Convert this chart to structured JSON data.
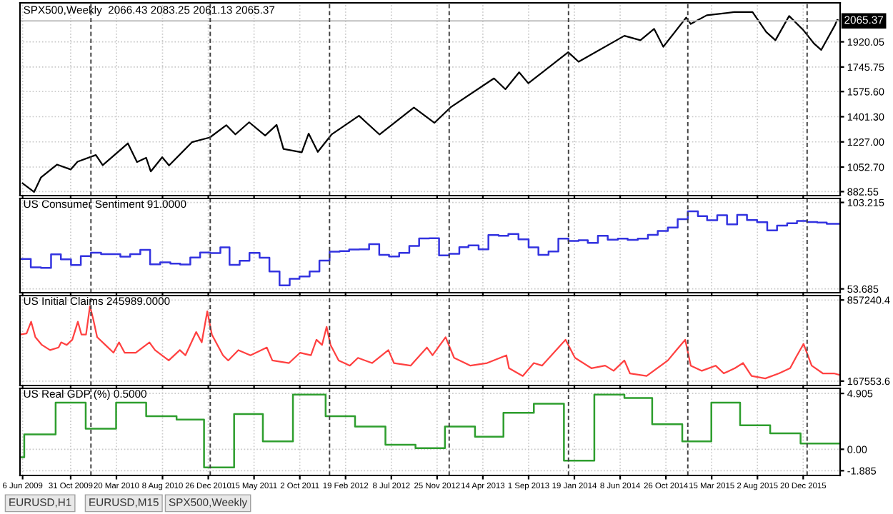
{
  "chart_data": [
    {
      "type": "line",
      "title": "SPX500,Weekly  2066.43 2083.25 2061.13 2065.37",
      "tick_labels": "y",
      "grid": true,
      "xlim": [
        "2009-05-29",
        "2016-04-11"
      ],
      "xticks": [
        {
          "value": "2009-06-06",
          "label": null
        },
        {
          "value": "2009-10-31",
          "label": null
        },
        {
          "value": "2010-03-20",
          "label": null
        },
        {
          "value": "2010-08-08",
          "label": null
        },
        {
          "value": "2010-12-26",
          "label": null
        },
        {
          "value": "2011-05-15",
          "label": null
        },
        {
          "value": "2011-10-02",
          "label": null
        },
        {
          "value": "2012-02-19",
          "label": null
        },
        {
          "value": "2012-07-08",
          "label": null
        },
        {
          "value": "2012-11-25",
          "label": null
        },
        {
          "value": "2013-04-14",
          "label": null
        },
        {
          "value": "2013-09-01",
          "label": null
        },
        {
          "value": "2014-01-19",
          "label": null
        },
        {
          "value": "2014-06-08",
          "label": null
        },
        {
          "value": "2014-10-26",
          "label": null
        },
        {
          "value": "2015-03-15",
          "label": null
        },
        {
          "value": "2015-08-02",
          "label": null
        },
        {
          "value": "2015-12-20",
          "label": null
        }
      ],
      "ylim": [
        855,
        2190
      ],
      "yticks": [
        {
          "value": 882.55,
          "label": "882.55"
        },
        {
          "value": 1052.7,
          "label": "1052.70"
        },
        {
          "value": 1227.0,
          "label": "1227.00"
        },
        {
          "value": 1401.3,
          "label": "1401.30"
        },
        {
          "value": 1575.6,
          "label": "1575.60"
        },
        {
          "value": 1745.75,
          "label": "1745.75"
        },
        {
          "value": 1920.05,
          "label": "1920.05"
        }
      ],
      "ref_lines": [
        {
          "axis": "y",
          "value": 2065.37,
          "label": "2065.37",
          "color": "#c0c0c0",
          "line_style": "solid"
        },
        {
          "axis": "x",
          "value": "2010-01-01",
          "color": "#404040",
          "line_style": "dashed"
        },
        {
          "axis": "x",
          "value": "2011-01-01",
          "color": "#404040",
          "line_style": "dashed"
        },
        {
          "axis": "x",
          "value": "2012-01-01",
          "color": "#404040",
          "line_style": "dashed"
        },
        {
          "axis": "x",
          "value": "2013-01-01",
          "color": "#404040",
          "line_style": "dashed"
        },
        {
          "axis": "x",
          "value": "2014-01-01",
          "color": "#404040",
          "line_style": "dashed"
        },
        {
          "axis": "x",
          "value": "2015-01-01",
          "color": "#404040",
          "line_style": "dashed"
        },
        {
          "axis": "x",
          "value": "2016-01-01",
          "color": "#404040",
          "line_style": "dashed"
        }
      ],
      "series": [
        {
          "color": "#000000",
          "x": [
            "2009-06-06",
            "2009-07-11",
            "2009-08-01",
            "2009-09-19",
            "2009-10-31",
            "2009-11-21",
            "2010-01-16",
            "2010-02-06",
            "2010-04-24",
            "2010-05-22",
            "2010-06-19",
            "2010-07-03",
            "2010-08-07",
            "2010-08-28",
            "2010-11-06",
            "2010-12-31",
            "2011-02-19",
            "2011-03-19",
            "2011-04-30",
            "2011-06-18",
            "2011-07-23",
            "2011-08-13",
            "2011-10-08",
            "2011-10-29",
            "2011-11-26",
            "2012-01-07",
            "2012-03-31",
            "2012-06-02",
            "2012-09-15",
            "2012-11-17",
            "2013-01-05",
            "2013-05-18",
            "2013-06-22",
            "2013-08-03",
            "2013-08-31",
            "2013-12-31",
            "2014-02-01",
            "2014-06-21",
            "2014-08-09",
            "2014-09-20",
            "2014-10-18",
            "2014-12-27",
            "2015-01-10",
            "2015-02-28",
            "2015-05-23",
            "2015-07-18",
            "2015-08-29",
            "2015-09-26",
            "2015-11-07",
            "2015-12-19",
            "2016-01-23",
            "2016-02-13",
            "2016-03-26",
            "2016-04-02",
            "2016-04-09"
          ],
          "values": [
            940,
            880,
            980,
            1070,
            1036,
            1090,
            1136,
            1066,
            1217,
            1087,
            1117,
            1022,
            1121,
            1064,
            1225,
            1258,
            1343,
            1279,
            1363,
            1271,
            1345,
            1178,
            1155,
            1285,
            1158,
            1278,
            1408,
            1278,
            1465,
            1359,
            1466,
            1667,
            1592,
            1709,
            1633,
            1848,
            1782,
            1962,
            1931,
            2010,
            1886,
            2088,
            2044,
            2104,
            2126,
            2126,
            1988,
            1931,
            2099,
            2005,
            1906,
            1864,
            2035,
            2072,
            2065
          ]
        }
      ]
    },
    {
      "type": "step",
      "title": "US Consumer Sentiment 91.0000",
      "tick_labels": "y",
      "grid": true,
      "xlim": [
        "2009-05-29",
        "2016-04-11"
      ],
      "xticks": [
        {
          "value": "2009-06-06",
          "label": null
        },
        {
          "value": "2009-10-31",
          "label": null
        },
        {
          "value": "2010-03-20",
          "label": null
        },
        {
          "value": "2010-08-08",
          "label": null
        },
        {
          "value": "2010-12-26",
          "label": null
        },
        {
          "value": "2011-05-15",
          "label": null
        },
        {
          "value": "2011-10-02",
          "label": null
        },
        {
          "value": "2012-02-19",
          "label": null
        },
        {
          "value": "2012-07-08",
          "label": null
        },
        {
          "value": "2012-11-25",
          "label": null
        },
        {
          "value": "2013-04-14",
          "label": null
        },
        {
          "value": "2013-09-01",
          "label": null
        },
        {
          "value": "2014-01-19",
          "label": null
        },
        {
          "value": "2014-06-08",
          "label": null
        },
        {
          "value": "2014-10-26",
          "label": null
        },
        {
          "value": "2015-03-15",
          "label": null
        },
        {
          "value": "2015-08-02",
          "label": null
        },
        {
          "value": "2015-12-20",
          "label": null
        }
      ],
      "ylim": [
        51.5,
        105.5
      ],
      "yticks": [
        53.685,
        103.215
      ],
      "ref_lines": [
        {
          "axis": "x",
          "value": "2010-01-01",
          "color": "#404040",
          "line_style": "dashed"
        },
        {
          "axis": "x",
          "value": "2011-01-01",
          "color": "#404040",
          "line_style": "dashed"
        },
        {
          "axis": "x",
          "value": "2012-01-01",
          "color": "#404040",
          "line_style": "dashed"
        },
        {
          "axis": "x",
          "value": "2013-01-01",
          "color": "#404040",
          "line_style": "dashed"
        },
        {
          "axis": "x",
          "value": "2014-01-01",
          "color": "#404040",
          "line_style": "dashed"
        },
        {
          "axis": "x",
          "value": "2015-01-01",
          "color": "#404040",
          "line_style": "dashed"
        },
        {
          "axis": "x",
          "value": "2016-01-01",
          "color": "#404040",
          "line_style": "dashed"
        }
      ],
      "series": [
        {
          "color": "#3333e0",
          "x": [
            "2009-06-01",
            "2009-07-01",
            "2009-08-01",
            "2009-09-01",
            "2009-10-01",
            "2009-11-01",
            "2009-12-01",
            "2010-01-01",
            "2010-02-01",
            "2010-03-01",
            "2010-04-01",
            "2010-05-01",
            "2010-06-01",
            "2010-07-01",
            "2010-08-01",
            "2010-09-01",
            "2010-10-01",
            "2010-11-01",
            "2010-12-01",
            "2011-01-01",
            "2011-02-01",
            "2011-03-01",
            "2011-04-01",
            "2011-05-01",
            "2011-06-01",
            "2011-07-01",
            "2011-08-01",
            "2011-09-01",
            "2011-10-01",
            "2011-11-01",
            "2011-12-01",
            "2012-01-01",
            "2012-02-01",
            "2012-03-01",
            "2012-04-01",
            "2012-05-01",
            "2012-06-01",
            "2012-07-01",
            "2012-08-01",
            "2012-09-01",
            "2012-10-01",
            "2012-11-01",
            "2012-12-01",
            "2013-01-01",
            "2013-02-01",
            "2013-03-01",
            "2013-04-01",
            "2013-05-01",
            "2013-06-01",
            "2013-07-01",
            "2013-08-01",
            "2013-09-01",
            "2013-10-01",
            "2013-11-01",
            "2013-12-01",
            "2014-01-01",
            "2014-02-01",
            "2014-03-01",
            "2014-04-01",
            "2014-05-01",
            "2014-06-01",
            "2014-07-01",
            "2014-08-01",
            "2014-09-01",
            "2014-10-01",
            "2014-11-01",
            "2014-12-01",
            "2015-01-01",
            "2015-02-01",
            "2015-03-01",
            "2015-04-01",
            "2015-05-01",
            "2015-06-01",
            "2015-07-01",
            "2015-08-01",
            "2015-09-01",
            "2015-10-01",
            "2015-11-01",
            "2015-12-01",
            "2016-01-01",
            "2016-02-01",
            "2016-03-01",
            "2016-04-09"
          ],
          "values": [
            70.8,
            66.0,
            65.7,
            73.5,
            70.6,
            67.4,
            72.5,
            74.4,
            73.6,
            73.6,
            72.2,
            73.6,
            76.0,
            67.8,
            68.9,
            68.2,
            67.7,
            71.6,
            74.5,
            74.2,
            77.5,
            67.5,
            69.8,
            74.3,
            71.5,
            63.7,
            55.7,
            59.5,
            60.8,
            63.7,
            69.9,
            75.0,
            75.3,
            76.2,
            76.4,
            79.3,
            73.2,
            72.3,
            74.3,
            78.3,
            82.6,
            82.7,
            72.9,
            73.8,
            77.6,
            78.6,
            76.4,
            84.5,
            84.1,
            85.1,
            82.1,
            77.5,
            73.2,
            75.1,
            82.5,
            81.2,
            81.6,
            80.0,
            84.1,
            81.9,
            82.5,
            81.8,
            82.5,
            84.6,
            86.9,
            88.8,
            93.6,
            98.1,
            95.4,
            93.0,
            95.9,
            90.7,
            96.1,
            93.1,
            91.9,
            87.2,
            90.0,
            91.3,
            92.6,
            92.0,
            91.7,
            91.0,
            91.0
          ]
        }
      ]
    },
    {
      "type": "line",
      "title": "US Initial Claims 245989.0000",
      "tick_labels": "y",
      "grid": true,
      "xlim": [
        "2009-05-29",
        "2016-04-11"
      ],
      "xticks": [
        {
          "value": "2009-06-06",
          "label": null
        },
        {
          "value": "2009-10-31",
          "label": null
        },
        {
          "value": "2010-03-20",
          "label": null
        },
        {
          "value": "2010-08-08",
          "label": null
        },
        {
          "value": "2010-12-26",
          "label": null
        },
        {
          "value": "2011-05-15",
          "label": null
        },
        {
          "value": "2011-10-02",
          "label": null
        },
        {
          "value": "2012-02-19",
          "label": null
        },
        {
          "value": "2012-07-08",
          "label": null
        },
        {
          "value": "2012-11-25",
          "label": null
        },
        {
          "value": "2013-04-14",
          "label": null
        },
        {
          "value": "2013-09-01",
          "label": null
        },
        {
          "value": "2014-01-19",
          "label": null
        },
        {
          "value": "2014-06-08",
          "label": null
        },
        {
          "value": "2014-10-26",
          "label": null
        },
        {
          "value": "2015-03-15",
          "label": null
        },
        {
          "value": "2015-08-02",
          "label": null
        },
        {
          "value": "2015-12-20",
          "label": null
        }
      ],
      "ylim": [
        130000,
        895000
      ],
      "yticks": [
        {
          "value": 167553.6,
          "label": "167553.6"
        },
        {
          "value": 857240.4,
          "label": "857240.4"
        }
      ],
      "ref_lines": [
        {
          "axis": "x",
          "value": "2010-01-01",
          "color": "#404040",
          "line_style": "dashed"
        },
        {
          "axis": "x",
          "value": "2011-01-01",
          "color": "#404040",
          "line_style": "dashed"
        },
        {
          "axis": "x",
          "value": "2012-01-01",
          "color": "#404040",
          "line_style": "dashed"
        },
        {
          "axis": "x",
          "value": "2013-01-01",
          "color": "#404040",
          "line_style": "dashed"
        },
        {
          "axis": "x",
          "value": "2014-01-01",
          "color": "#404040",
          "line_style": "dashed"
        },
        {
          "axis": "x",
          "value": "2015-01-01",
          "color": "#404040",
          "line_style": "dashed"
        },
        {
          "axis": "x",
          "value": "2016-01-01",
          "color": "#404040",
          "line_style": "dashed"
        }
      ],
      "series": [
        {
          "color": "#ff4040",
          "x": [
            "2009-05-29",
            "2009-06-18",
            "2009-07-02",
            "2009-07-15",
            "2009-08-04",
            "2009-08-29",
            "2009-09-24",
            "2009-10-02",
            "2009-10-19",
            "2009-11-05",
            "2009-11-22",
            "2009-12-03",
            "2009-12-17",
            "2009-12-29",
            "2010-01-08",
            "2010-01-20",
            "2010-02-14",
            "2010-03-11",
            "2010-03-28",
            "2010-04-14",
            "2010-05-18",
            "2010-06-29",
            "2010-07-16",
            "2010-08-27",
            "2010-09-30",
            "2010-10-17",
            "2010-11-19",
            "2010-12-06",
            "2010-12-23",
            "2011-01-06",
            "2011-02-09",
            "2011-02-25",
            "2011-03-28",
            "2011-05-04",
            "2011-06-23",
            "2011-07-10",
            "2011-08-30",
            "2011-10-03",
            "2011-11-05",
            "2011-11-22",
            "2011-12-09",
            "2011-12-23",
            "2012-01-04",
            "2012-01-29",
            "2012-03-03",
            "2012-03-28",
            "2012-05-10",
            "2012-06-29",
            "2012-07-16",
            "2012-09-05",
            "2012-10-25",
            "2012-11-11",
            "2012-12-21",
            "2013-01-16",
            "2013-03-07",
            "2013-04-27",
            "2013-06-25",
            "2013-07-03",
            "2013-08-14",
            "2013-09-17",
            "2013-10-12",
            "2013-11-24",
            "2013-12-23",
            "2014-01-21",
            "2014-03-12",
            "2014-04-23",
            "2014-05-19",
            "2014-06-21",
            "2014-07-08",
            "2014-08-28",
            "2014-11-01",
            "2014-11-27",
            "2014-12-24",
            "2015-01-10",
            "2015-02-13",
            "2015-03-27",
            "2015-04-21",
            "2015-05-25",
            "2015-06-19",
            "2015-07-15",
            "2015-08-26",
            "2015-10-07",
            "2015-11-10",
            "2015-11-27",
            "2015-12-21",
            "2016-01-15",
            "2016-02-18",
            "2016-03-23",
            "2016-04-09"
          ],
          "values": [
            563000,
            572000,
            673000,
            541000,
            475000,
            431000,
            453000,
            497000,
            475000,
            519000,
            673000,
            563000,
            563000,
            805000,
            695000,
            541000,
            475000,
            409000,
            497000,
            409000,
            409000,
            497000,
            431000,
            343000,
            431000,
            387000,
            585000,
            497000,
            761000,
            563000,
            387000,
            343000,
            431000,
            387000,
            453000,
            343000,
            321000,
            409000,
            387000,
            519000,
            475000,
            629000,
            475000,
            343000,
            299000,
            365000,
            321000,
            431000,
            321000,
            299000,
            453000,
            387000,
            541000,
            365000,
            299000,
            321000,
            387000,
            277000,
            211000,
            321000,
            299000,
            431000,
            519000,
            365000,
            277000,
            299000,
            255000,
            343000,
            233000,
            211000,
            343000,
            431000,
            519000,
            299000,
            255000,
            299000,
            233000,
            277000,
            321000,
            211000,
            190000,
            233000,
            277000,
            365000,
            484000,
            299000,
            233000,
            233000,
            220000
          ]
        }
      ]
    },
    {
      "type": "step",
      "title": "US Real GDP (%) 0.5000",
      "grid": true,
      "xlim": [
        "2009-05-29",
        "2016-04-11"
      ],
      "xticks": [
        {
          "value": "2009-06-06",
          "label": "6 Jun 2009"
        },
        {
          "value": "2009-10-31",
          "label": "31 Oct 2009"
        },
        {
          "value": "2010-03-20",
          "label": "20 Mar 2010"
        },
        {
          "value": "2010-08-08",
          "label": "8 Aug 2010"
        },
        {
          "value": "2010-12-26",
          "label": "26 Dec 2010"
        },
        {
          "value": "2011-05-15",
          "label": "15 May 2011"
        },
        {
          "value": "2011-10-02",
          "label": "2 Oct 2011"
        },
        {
          "value": "2012-02-19",
          "label": "19 Feb 2012"
        },
        {
          "value": "2012-07-08",
          "label": "8 Jul 2012"
        },
        {
          "value": "2012-11-25",
          "label": "25 Nov 2012"
        },
        {
          "value": "2013-04-14",
          "label": "14 Apr 2013"
        },
        {
          "value": "2013-09-01",
          "label": "1 Sep 2013"
        },
        {
          "value": "2014-01-19",
          "label": "19 Jan 2014"
        },
        {
          "value": "2014-06-08",
          "label": "8 Jun 2014"
        },
        {
          "value": "2014-10-26",
          "label": "26 Oct 2014"
        },
        {
          "value": "2015-03-15",
          "label": "15 Mar 2015"
        },
        {
          "value": "2015-08-02",
          "label": "2 Aug 2015"
        },
        {
          "value": "2015-12-20",
          "label": "20 Dec 2015"
        }
      ],
      "ylim": [
        -2.3,
        5.35
      ],
      "yticks": [
        {
          "value": -1.885,
          "label": "-1.885"
        },
        {
          "value": 0,
          "label": "0.00"
        },
        {
          "value": 4.905,
          "label": "4.905"
        }
      ],
      "ref_lines": [
        {
          "axis": "x",
          "value": "2010-01-01",
          "color": "#404040",
          "line_style": "dashed"
        },
        {
          "axis": "x",
          "value": "2011-01-01",
          "color": "#404040",
          "line_style": "dashed"
        },
        {
          "axis": "x",
          "value": "2012-01-01",
          "color": "#404040",
          "line_style": "dashed"
        },
        {
          "axis": "x",
          "value": "2013-01-01",
          "color": "#404040",
          "line_style": "dashed"
        },
        {
          "axis": "x",
          "value": "2014-01-01",
          "color": "#404040",
          "line_style": "dashed"
        },
        {
          "axis": "x",
          "value": "2015-01-01",
          "color": "#404040",
          "line_style": "dashed"
        },
        {
          "axis": "x",
          "value": "2016-01-01",
          "color": "#404040",
          "line_style": "dashed"
        }
      ],
      "annotations": [
        "EURUSD,H1",
        "EURUSD,M15",
        "SPX500,Weekly"
      ],
      "series": [
        {
          "color": "#2e9e2e",
          "x": [
            "2009-05-29",
            "2009-06-11",
            "2009-09-15",
            "2009-12-16",
            "2010-03-19",
            "2010-06-19",
            "2010-09-20",
            "2010-12-13",
            "2011-03-15",
            "2011-06-11",
            "2011-09-11",
            "2011-12-20",
            "2012-03-19",
            "2012-06-20",
            "2012-09-20",
            "2012-12-19",
            "2013-03-21",
            "2013-06-16",
            "2013-09-17",
            "2013-12-18",
            "2014-03-21",
            "2014-06-21",
            "2014-09-14",
            "2014-12-15",
            "2015-03-14",
            "2015-06-10",
            "2015-09-10",
            "2015-12-12",
            "2016-04-08"
          ],
          "values": [
            -0.7,
            1.3,
            4.1,
            1.8,
            4.1,
            2.9,
            2.6,
            -1.6,
            3.1,
            0.7,
            4.8,
            2.9,
            2.0,
            0.4,
            0.1,
            2.0,
            1.1,
            3.2,
            4.0,
            -1.0,
            4.8,
            4.5,
            2.2,
            0.7,
            4.1,
            2.1,
            1.4,
            0.5,
            0.5
          ]
        }
      ]
    }
  ]
}
